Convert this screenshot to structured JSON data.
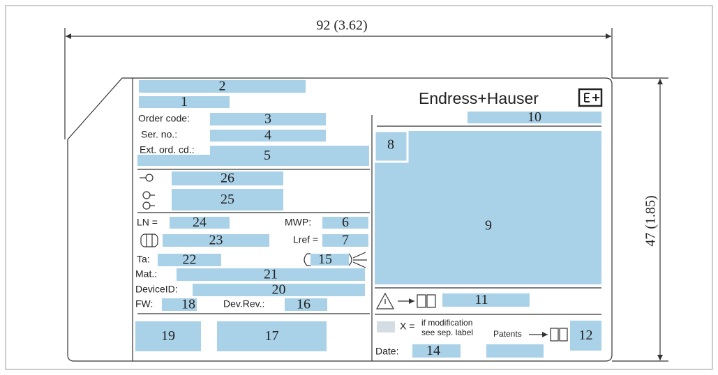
{
  "dimensions": {
    "width": "92 (3.62)",
    "height": "47 (1.85)"
  },
  "brand": "Endress+Hauser",
  "fields": {
    "order_code": "Order code:",
    "serial_no": "Ser. no.:",
    "ext_order_code": "Ext. ord. cd.:",
    "ln": "LN =",
    "mwp": "MWP:",
    "lref": "Lref =",
    "ta": "Ta:",
    "material": "Mat.:",
    "device_id": "DeviceID:",
    "fw": "FW:",
    "dev_rev": "Dev.Rev.:",
    "x_eq": "X =",
    "modification_1": "if modification",
    "modification_2": "see sep. label",
    "patents": "Patents",
    "date": "Date:"
  },
  "callouts": [
    "1",
    "2",
    "3",
    "4",
    "5",
    "6",
    "7",
    "8",
    "9",
    "10",
    "11",
    "12",
    "14",
    "15",
    "16",
    "17",
    "18",
    "19",
    "20",
    "21",
    "22",
    "23",
    "24",
    "25",
    "26"
  ]
}
